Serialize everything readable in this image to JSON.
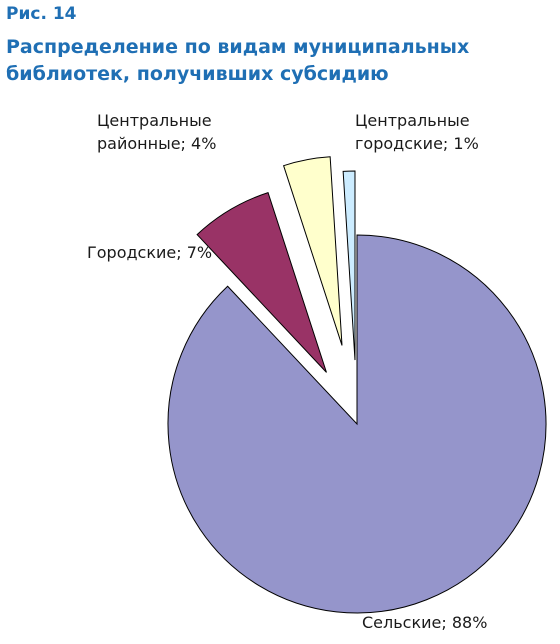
{
  "figure": {
    "label": "Рис. 14",
    "title": "Распределение по видам муниципальных библиотек, получивших субсидию"
  },
  "chart_data": {
    "type": "pie",
    "exploded": true,
    "slices": [
      {
        "label_lines": [
          "Сельские; 88%"
        ],
        "value": 88,
        "color": "#9595cb"
      },
      {
        "label_lines": [
          "Городские; 7%"
        ],
        "value": 7,
        "color": "#993366"
      },
      {
        "label_lines": [
          "Центральные",
          "районные; 4%"
        ],
        "value": 4,
        "color": "#ffffcc"
      },
      {
        "label_lines": [
          "Центральные",
          "городские; 1%"
        ],
        "value": 1,
        "color": "#ccecff"
      }
    ]
  }
}
